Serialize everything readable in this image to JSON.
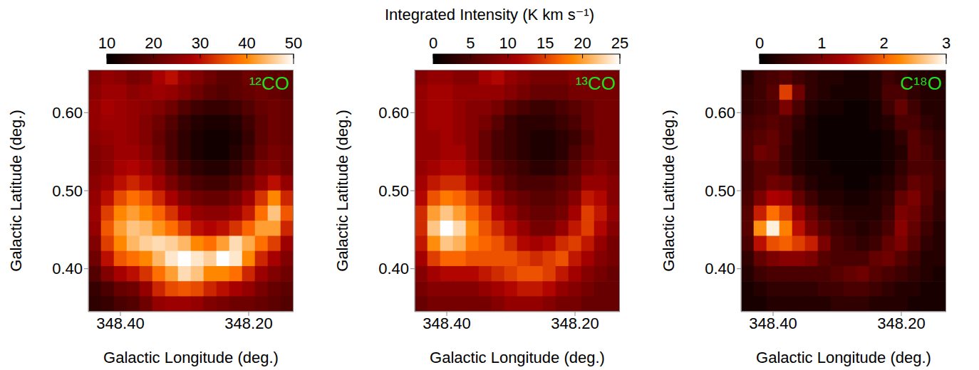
{
  "title": "Integrated Intensity (K km s⁻¹)",
  "chart_data": [
    {
      "type": "heatmap",
      "annotation": "¹²CO",
      "x_label": "Galactic Longitude (deg.)",
      "y_label": "Galactic Latitude (deg.)",
      "xlim": [
        348.45,
        348.13
      ],
      "ylim": [
        0.345,
        0.655
      ],
      "xticks": [
        {
          "value": 348.4,
          "label": "348.40"
        },
        {
          "value": 348.2,
          "label": "348.20"
        }
      ],
      "yticks": [
        {
          "value": 0.4,
          "label": "0.40"
        },
        {
          "value": 0.5,
          "label": "0.50"
        },
        {
          "value": 0.6,
          "label": "0.60"
        }
      ],
      "colorbar": {
        "range": [
          10,
          50
        ],
        "ticks": [
          10,
          20,
          30,
          40,
          50
        ]
      },
      "cells": [
        [
          24,
          26,
          25,
          23,
          24,
          28,
          30,
          26,
          24,
          22,
          20,
          20,
          22,
          21,
          20,
          20
        ],
        [
          25,
          27,
          27,
          25,
          26,
          27,
          26,
          24,
          22,
          20,
          19,
          20,
          21,
          22,
          21,
          20
        ],
        [
          26,
          28,
          27,
          26,
          25,
          24,
          22,
          19,
          17,
          16,
          16,
          17,
          19,
          21,
          22,
          21
        ],
        [
          26,
          27,
          27,
          26,
          24,
          22,
          19,
          16,
          14,
          13,
          13,
          14,
          17,
          20,
          22,
          21
        ],
        [
          25,
          26,
          27,
          26,
          24,
          21,
          18,
          15,
          13,
          12,
          12,
          13,
          16,
          20,
          22,
          21
        ],
        [
          24,
          25,
          27,
          27,
          25,
          22,
          18,
          15,
          13,
          12,
          12,
          14,
          17,
          21,
          23,
          22
        ],
        [
          24,
          25,
          28,
          29,
          27,
          24,
          20,
          17,
          15,
          14,
          14,
          16,
          19,
          23,
          24,
          22
        ],
        [
          25,
          27,
          30,
          32,
          30,
          27,
          23,
          20,
          18,
          17,
          17,
          19,
          22,
          26,
          30,
          26
        ],
        [
          26,
          30,
          35,
          38,
          36,
          32,
          28,
          24,
          22,
          21,
          21,
          23,
          27,
          33,
          40,
          32
        ],
        [
          27,
          34,
          40,
          42,
          40,
          37,
          33,
          29,
          26,
          25,
          25,
          27,
          31,
          38,
          45,
          36
        ],
        [
          26,
          36,
          42,
          45,
          44,
          41,
          38,
          34,
          30,
          29,
          30,
          33,
          37,
          42,
          42,
          32
        ],
        [
          24,
          34,
          40,
          44,
          46,
          47,
          46,
          44,
          40,
          38,
          42,
          47,
          43,
          38,
          34,
          27
        ],
        [
          22,
          30,
          36,
          38,
          40,
          44,
          48,
          50,
          48,
          46,
          50,
          48,
          40,
          32,
          28,
          24
        ],
        [
          19,
          24,
          28,
          30,
          33,
          38,
          42,
          47,
          45,
          40,
          40,
          38,
          32,
          27,
          24,
          22
        ],
        [
          16,
          18,
          21,
          22,
          26,
          32,
          35,
          36,
          35,
          32,
          30,
          28,
          26,
          23,
          21,
          20
        ],
        [
          15,
          16,
          18,
          19,
          22,
          26,
          27,
          27,
          26,
          24,
          23,
          22,
          22,
          21,
          20,
          19
        ]
      ]
    },
    {
      "type": "heatmap",
      "annotation": "¹³CO",
      "x_label": "Galactic Longitude (deg.)",
      "y_label": "Galactic Latitude (deg.)",
      "xlim": [
        348.45,
        348.13
      ],
      "ylim": [
        0.345,
        0.655
      ],
      "xticks": [
        {
          "value": 348.4,
          "label": "348.40"
        },
        {
          "value": 348.2,
          "label": "348.20"
        }
      ],
      "yticks": [
        {
          "value": 0.4,
          "label": "0.40"
        },
        {
          "value": 0.5,
          "label": "0.50"
        },
        {
          "value": 0.6,
          "label": "0.60"
        }
      ],
      "colorbar": {
        "range": [
          0,
          25
        ],
        "ticks": [
          0,
          5,
          10,
          15,
          20,
          25
        ]
      },
      "cells": [
        [
          9,
          10,
          10,
          9,
          9,
          11,
          12,
          10,
          9,
          8,
          8,
          8,
          9,
          8,
          8,
          8
        ],
        [
          10,
          11,
          11,
          10,
          10,
          10,
          10,
          9,
          8,
          7,
          7,
          7,
          8,
          8,
          8,
          8
        ],
        [
          10,
          11,
          11,
          10,
          9,
          9,
          8,
          6,
          5,
          4,
          4,
          5,
          6,
          7,
          8,
          8
        ],
        [
          10,
          11,
          11,
          10,
          9,
          8,
          6,
          4,
          3,
          3,
          3,
          4,
          5,
          7,
          8,
          8
        ],
        [
          10,
          10,
          11,
          10,
          9,
          7,
          5,
          4,
          3,
          2,
          2,
          3,
          4,
          6,
          8,
          8
        ],
        [
          10,
          10,
          11,
          11,
          9,
          7,
          5,
          4,
          3,
          2,
          2,
          3,
          5,
          7,
          8,
          8
        ],
        [
          10,
          11,
          12,
          12,
          10,
          8,
          6,
          5,
          4,
          3,
          3,
          4,
          6,
          8,
          9,
          8
        ],
        [
          11,
          13,
          14,
          14,
          12,
          10,
          8,
          6,
          5,
          5,
          5,
          6,
          7,
          10,
          10,
          9
        ],
        [
          12,
          16,
          18,
          17,
          15,
          13,
          10,
          8,
          7,
          6,
          6,
          7,
          9,
          13,
          12,
          9
        ],
        [
          14,
          20,
          22,
          20,
          17,
          15,
          12,
          10,
          8,
          7,
          7,
          8,
          11,
          15,
          13,
          10
        ],
        [
          14,
          22,
          25,
          23,
          19,
          16,
          14,
          12,
          10,
          8,
          8,
          10,
          13,
          15,
          12,
          9
        ],
        [
          13,
          19,
          22,
          21,
          18,
          17,
          16,
          14,
          12,
          11,
          12,
          14,
          15,
          13,
          10,
          8
        ],
        [
          11,
          15,
          17,
          17,
          16,
          16,
          16,
          16,
          15,
          14,
          15,
          16,
          13,
          11,
          9,
          8
        ],
        [
          9,
          11,
          12,
          12,
          12,
          13,
          14,
          15,
          16,
          16,
          15,
          13,
          11,
          9,
          8,
          7
        ],
        [
          8,
          9,
          9,
          9,
          9,
          10,
          11,
          12,
          13,
          13,
          12,
          10,
          9,
          8,
          7,
          7
        ],
        [
          7,
          8,
          8,
          8,
          8,
          8,
          9,
          10,
          10,
          10,
          9,
          8,
          8,
          7,
          7,
          7
        ]
      ]
    },
    {
      "type": "heatmap",
      "annotation": "C¹⁸O",
      "x_label": "Galactic Longitude (deg.)",
      "y_label": "Galactic Latitude (deg.)",
      "xlim": [
        348.45,
        348.13
      ],
      "ylim": [
        0.345,
        0.655
      ],
      "xticks": [
        {
          "value": 348.4,
          "label": "348.40"
        },
        {
          "value": 348.2,
          "label": "348.20"
        }
      ],
      "yticks": [
        {
          "value": 0.4,
          "label": "0.40"
        },
        {
          "value": 0.5,
          "label": "0.50"
        },
        {
          "value": 0.6,
          "label": "0.60"
        }
      ],
      "colorbar": {
        "range": [
          0,
          3
        ],
        "ticks": [
          0,
          1,
          2,
          3
        ]
      },
      "cells": [
        [
          0.3,
          0.5,
          0.6,
          0.7,
          0.5,
          0.4,
          0.3,
          0.3,
          0.2,
          0.2,
          0.3,
          0.5,
          0.4,
          0.3,
          0.3,
          0.3
        ],
        [
          0.4,
          0.5,
          0.7,
          1.8,
          0.9,
          0.4,
          0.3,
          0.2,
          0.2,
          0.2,
          0.3,
          0.6,
          0.6,
          0.4,
          0.3,
          0.3
        ],
        [
          0.4,
          0.5,
          0.6,
          1.0,
          0.6,
          0.3,
          0.2,
          0.2,
          0.1,
          0.1,
          0.2,
          0.5,
          0.8,
          0.5,
          0.3,
          0.3
        ],
        [
          0.5,
          0.6,
          0.7,
          0.6,
          0.4,
          0.2,
          0.1,
          0.1,
          0.1,
          0.1,
          0.2,
          0.3,
          0.6,
          0.6,
          0.4,
          0.3
        ],
        [
          0.6,
          0.7,
          0.8,
          0.6,
          0.3,
          0.2,
          0.1,
          0.1,
          0.1,
          0.1,
          0.1,
          0.2,
          0.4,
          0.7,
          0.5,
          0.4
        ],
        [
          0.6,
          0.9,
          0.8,
          0.5,
          0.3,
          0.2,
          0.1,
          0.1,
          0.1,
          0.1,
          0.1,
          0.2,
          0.3,
          0.7,
          0.6,
          0.4
        ],
        [
          0.5,
          0.7,
          0.7,
          0.5,
          0.3,
          0.2,
          0.2,
          0.1,
          0.1,
          0.1,
          0.1,
          0.2,
          0.4,
          0.6,
          0.6,
          0.5
        ],
        [
          0.5,
          0.7,
          0.9,
          0.8,
          0.5,
          0.3,
          0.2,
          0.2,
          0.1,
          0.1,
          0.2,
          0.3,
          0.5,
          0.8,
          0.7,
          0.5
        ],
        [
          0.6,
          1.0,
          1.4,
          1.3,
          0.8,
          0.5,
          0.3,
          0.3,
          0.2,
          0.2,
          0.3,
          0.4,
          0.8,
          1.0,
          0.7,
          0.4
        ],
        [
          0.7,
          1.6,
          2.1,
          1.8,
          1.2,
          0.8,
          0.5,
          0.4,
          0.3,
          0.3,
          0.3,
          0.5,
          1.0,
          0.9,
          0.6,
          0.4
        ],
        [
          0.7,
          2.3,
          2.9,
          2.2,
          1.5,
          1.0,
          0.7,
          0.5,
          0.4,
          0.3,
          0.4,
          0.6,
          1.1,
          0.8,
          0.5,
          0.3
        ],
        [
          0.6,
          1.5,
          1.9,
          2.0,
          1.8,
          1.6,
          1.0,
          0.6,
          0.5,
          0.4,
          0.5,
          0.8,
          1.0,
          0.7,
          0.4,
          0.3
        ],
        [
          0.4,
          0.8,
          1.0,
          1.1,
          1.1,
          1.0,
          0.7,
          0.6,
          0.6,
          0.6,
          0.8,
          0.9,
          0.7,
          0.5,
          0.3,
          0.3
        ],
        [
          0.3,
          0.5,
          0.6,
          0.6,
          0.6,
          0.6,
          0.6,
          0.7,
          0.8,
          0.9,
          0.7,
          0.6,
          0.5,
          0.4,
          0.3,
          0.2
        ],
        [
          0.2,
          0.3,
          0.4,
          0.4,
          0.4,
          0.4,
          0.5,
          0.5,
          0.6,
          0.6,
          0.5,
          0.4,
          0.3,
          0.3,
          0.2,
          0.2
        ],
        [
          0.2,
          0.2,
          0.3,
          0.3,
          0.3,
          0.3,
          0.3,
          0.4,
          0.4,
          0.4,
          0.3,
          0.3,
          0.3,
          0.2,
          0.2,
          0.2
        ]
      ]
    }
  ]
}
